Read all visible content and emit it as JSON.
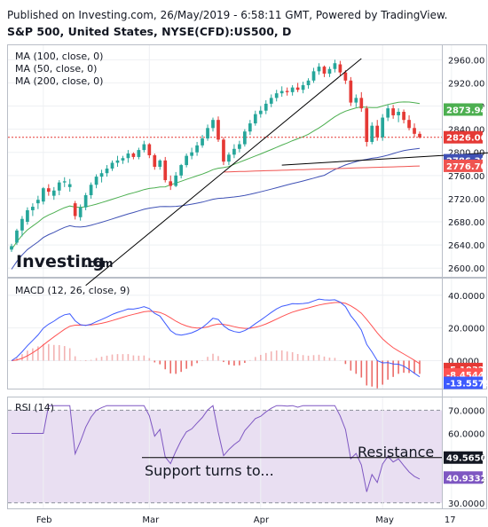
{
  "header": {
    "published": "Published on Investing.com, 26/May/2019 - 6:58:11 GMT, Powered by TradingView.",
    "instrument": "S&P 500, United States, NYSE(CFD):US500, D"
  },
  "colors": {
    "up": "#26a69a",
    "down": "#e53935",
    "ma50": "#4caf50",
    "ma100": "#ef5350",
    "ma200": "#3f51b5",
    "macd": "#3d5afe",
    "signal": "#ff5252",
    "rsi": "#7e57c2",
    "rsi_band": "#e9dff2",
    "trendline": "#000000"
  },
  "logo": {
    "text": "Investing",
    "suffix": ".com"
  },
  "chart_data": [
    {
      "type": "candlestick",
      "legend": [
        "MA (100, close, 0)",
        "MA (50, close, 0)",
        "MA (200, close, 0)"
      ],
      "y_ticks": [
        "2960.00",
        "2920.00",
        "2880.00",
        "2840.00",
        "2800.00",
        "2760.00",
        "2720.00",
        "2680.00",
        "2640.00",
        "2600.00"
      ],
      "y_range": [
        2585,
        2985
      ],
      "x_ticks": [
        "Feb",
        "Mar",
        "Apr",
        "May",
        "17"
      ],
      "price_labels": [
        {
          "text": "2873.94",
          "value": 2873.94,
          "role": "ma50"
        },
        {
          "text": "2826.06",
          "value": 2826.06,
          "role": "last"
        },
        {
          "text": "2786.38",
          "value": 2786.38,
          "role": "ma200"
        },
        {
          "text": "2776.70",
          "value": 2776.7,
          "role": "ma100"
        }
      ],
      "candles": [
        [
          2632,
          2642,
          2628,
          2638
        ],
        [
          2644,
          2668,
          2640,
          2665
        ],
        [
          2665,
          2690,
          2655,
          2685
        ],
        [
          2680,
          2705,
          2675,
          2700
        ],
        [
          2700,
          2712,
          2690,
          2706
        ],
        [
          2712,
          2725,
          2702,
          2718
        ],
        [
          2715,
          2740,
          2710,
          2738
        ],
        [
          2738,
          2745,
          2725,
          2732
        ],
        [
          2725,
          2740,
          2718,
          2734
        ],
        [
          2734,
          2752,
          2726,
          2748
        ],
        [
          2748,
          2757,
          2740,
          2750
        ],
        [
          2740,
          2754,
          2732,
          2745
        ],
        [
          2712,
          2716,
          2684,
          2690
        ],
        [
          2688,
          2710,
          2682,
          2705
        ],
        [
          2705,
          2730,
          2700,
          2726
        ],
        [
          2726,
          2748,
          2720,
          2744
        ],
        [
          2744,
          2762,
          2738,
          2758
        ],
        [
          2758,
          2770,
          2748,
          2764
        ],
        [
          2764,
          2778,
          2758,
          2772
        ],
        [
          2772,
          2786,
          2768,
          2782
        ],
        [
          2782,
          2794,
          2775,
          2786
        ],
        [
          2786,
          2794,
          2780,
          2790
        ],
        [
          2790,
          2804,
          2782,
          2798
        ],
        [
          2798,
          2800,
          2788,
          2792
        ],
        [
          2792,
          2808,
          2788,
          2804
        ],
        [
          2804,
          2820,
          2800,
          2814
        ],
        [
          2814,
          2816,
          2790,
          2795
        ],
        [
          2795,
          2798,
          2770,
          2775
        ],
        [
          2775,
          2788,
          2770,
          2786
        ],
        [
          2786,
          2792,
          2748,
          2752
        ],
        [
          2750,
          2760,
          2735,
          2742
        ],
        [
          2742,
          2766,
          2740,
          2760
        ],
        [
          2760,
          2780,
          2755,
          2778
        ],
        [
          2778,
          2798,
          2774,
          2794
        ],
        [
          2794,
          2808,
          2788,
          2800
        ],
        [
          2800,
          2818,
          2794,
          2812
        ],
        [
          2812,
          2830,
          2808,
          2824
        ],
        [
          2824,
          2848,
          2820,
          2842
        ],
        [
          2842,
          2860,
          2836,
          2856
        ],
        [
          2856,
          2862,
          2818,
          2822
        ],
        [
          2822,
          2826,
          2778,
          2784
        ],
        [
          2784,
          2800,
          2778,
          2796
        ],
        [
          2796,
          2814,
          2790,
          2806
        ],
        [
          2806,
          2820,
          2800,
          2814
        ],
        [
          2814,
          2840,
          2810,
          2836
        ],
        [
          2836,
          2856,
          2830,
          2850
        ],
        [
          2850,
          2872,
          2846,
          2866
        ],
        [
          2866,
          2880,
          2860,
          2872
        ],
        [
          2872,
          2890,
          2866,
          2884
        ],
        [
          2884,
          2900,
          2878,
          2894
        ],
        [
          2894,
          2908,
          2888,
          2902
        ],
        [
          2902,
          2914,
          2896,
          2906
        ],
        [
          2906,
          2912,
          2898,
          2904
        ],
        [
          2904,
          2916,
          2898,
          2912
        ],
        [
          2912,
          2920,
          2904,
          2908
        ],
        [
          2908,
          2922,
          2902,
          2916
        ],
        [
          2916,
          2928,
          2910,
          2924
        ],
        [
          2924,
          2946,
          2920,
          2940
        ],
        [
          2940,
          2954,
          2934,
          2948
        ],
        [
          2948,
          2950,
          2930,
          2936
        ],
        [
          2936,
          2948,
          2930,
          2944
        ],
        [
          2944,
          2960,
          2938,
          2954
        ],
        [
          2952,
          2958,
          2932,
          2938
        ],
        [
          2938,
          2942,
          2918,
          2924
        ],
        [
          2924,
          2930,
          2880,
          2886
        ],
        [
          2886,
          2900,
          2878,
          2894
        ],
        [
          2894,
          2904,
          2870,
          2876
        ],
        [
          2876,
          2880,
          2810,
          2818
        ],
        [
          2818,
          2852,
          2814,
          2846
        ],
        [
          2846,
          2856,
          2820,
          2826
        ],
        [
          2826,
          2866,
          2820,
          2860
        ],
        [
          2860,
          2882,
          2854,
          2876
        ],
        [
          2876,
          2882,
          2858,
          2864
        ],
        [
          2864,
          2876,
          2852,
          2870
        ],
        [
          2870,
          2874,
          2850,
          2856
        ],
        [
          2856,
          2864,
          2838,
          2842
        ],
        [
          2842,
          2850,
          2826,
          2832
        ],
        [
          2832,
          2836,
          2824,
          2826
        ]
      ],
      "trendlines": [
        {
          "from": [
            14,
            2570
          ],
          "to": [
            66,
            2962
          ]
        },
        {
          "from": [
            51,
            2778
          ],
          "to": [
            106,
            2808
          ]
        },
        {
          "from": [
            92,
            2905
          ],
          "to": [
            106,
            2888
          ]
        },
        {
          "from": [
            93,
            2810
          ],
          "to": [
            106,
            2876
          ]
        }
      ]
    },
    {
      "type": "line",
      "title": "MACD (12, 26, close, 9)",
      "y_ticks": [
        "40.0000",
        "20.0000",
        "0.0000"
      ],
      "y_range": [
        -16,
        48
      ],
      "value_labels": [
        {
          "text": "-5.1032",
          "value": -5.1032,
          "role": "hist"
        },
        {
          "text": "-8.4544",
          "value": -8.4544,
          "role": "signal"
        },
        {
          "text": "-13.5576",
          "value": -13.5576,
          "role": "macd"
        }
      ]
    },
    {
      "type": "line",
      "title": "RSI (14)",
      "y_ticks": [
        "70.0000",
        "60.0000",
        "50.0000",
        "40.0000",
        "30.0000"
      ],
      "y_range": [
        28,
        74
      ],
      "band": [
        30,
        70
      ],
      "value_labels": [
        {
          "text": "49.5650",
          "value": 49.565,
          "role": "resistance"
        },
        {
          "text": "40.9332",
          "value": 40.9332,
          "role": "rsi"
        }
      ],
      "annotations": {
        "resistance": "Resistance",
        "support": "Support turns to..."
      }
    }
  ]
}
